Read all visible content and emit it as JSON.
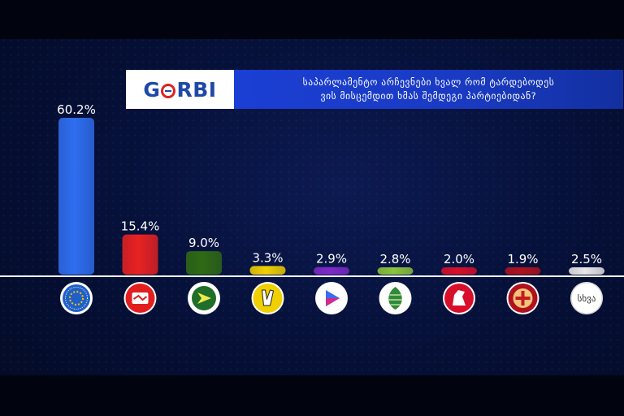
{
  "brand": {
    "logo_text": "GORBI"
  },
  "question": {
    "line1": "საპარლამენტო არჩევნები ხვალ რომ ტარდებოდეს",
    "line2": "ვის მისცემდით ხმას შემდეგი პარტიებიდან?"
  },
  "chart_data": {
    "type": "bar",
    "categories": [
      "party-1",
      "party-2",
      "party-3",
      "party-4",
      "party-5",
      "party-6",
      "party-7",
      "party-8",
      "სხვა"
    ],
    "values": [
      60.2,
      15.4,
      9.0,
      3.3,
      2.9,
      2.8,
      2.0,
      1.9,
      2.5
    ],
    "value_labels": [
      "60.2%",
      "15.4%",
      "9.0%",
      "3.3%",
      "2.9%",
      "2.8%",
      "2.0%",
      "1.9%",
      "2.5%"
    ],
    "colors": [
      "#2f6ef0",
      "#e82222",
      "#2f6a14",
      "#f0d000",
      "#7e2ac8",
      "#8cc43c",
      "#d80f2a",
      "#b0121e",
      "#e8e8e8"
    ],
    "icons": [
      "stars-circle-icon",
      "handshake-icon",
      "arrow-badge-icon",
      "victory-hand-icon",
      "play-triangle-icon",
      "pinecone-icon",
      "lion-icon",
      "flag-emblem-icon",
      "other-text-icon"
    ],
    "other_label": "სხვა",
    "ylim": [
      0,
      62
    ]
  }
}
